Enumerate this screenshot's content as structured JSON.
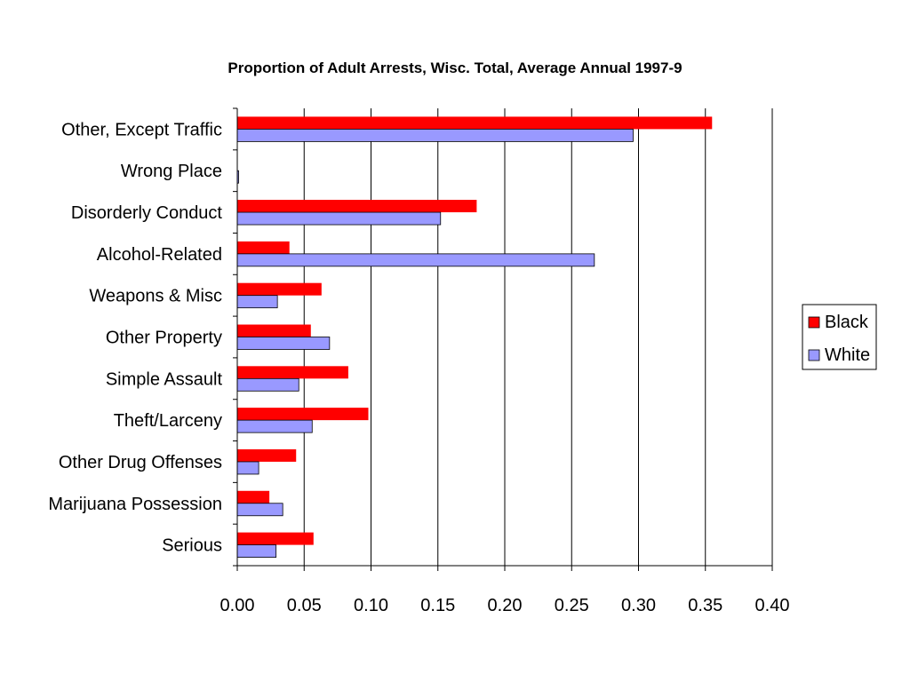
{
  "chart_data": {
    "type": "bar",
    "orientation": "horizontal",
    "title": "Proportion of Adult Arrests, Wisc. Total, Average Annual 1997-9",
    "xlabel": "",
    "ylabel": "",
    "xlim": [
      0,
      0.4
    ],
    "x_ticks": [
      "0.00",
      "0.05",
      "0.10",
      "0.15",
      "0.20",
      "0.25",
      "0.30",
      "0.35",
      "0.40"
    ],
    "grid": "vertical",
    "legend_position": "right",
    "categories": [
      "Other, Except Traffic",
      "Wrong Place",
      "Disorderly Conduct",
      "Alcohol-Related",
      "Weapons & Misc",
      "Other Property",
      "Simple Assault",
      "Theft/Larceny",
      "Other Drug Offenses",
      "Marijuana Possession",
      "Serious"
    ],
    "series": [
      {
        "name": "Black",
        "color": "#ff0000",
        "values": [
          0.355,
          0.0,
          0.179,
          0.039,
          0.063,
          0.055,
          0.083,
          0.098,
          0.044,
          0.024,
          0.057
        ]
      },
      {
        "name": "White",
        "color": "#9999ff",
        "values": [
          0.296,
          0.001,
          0.152,
          0.267,
          0.03,
          0.069,
          0.046,
          0.056,
          0.016,
          0.034,
          0.029
        ]
      }
    ]
  }
}
